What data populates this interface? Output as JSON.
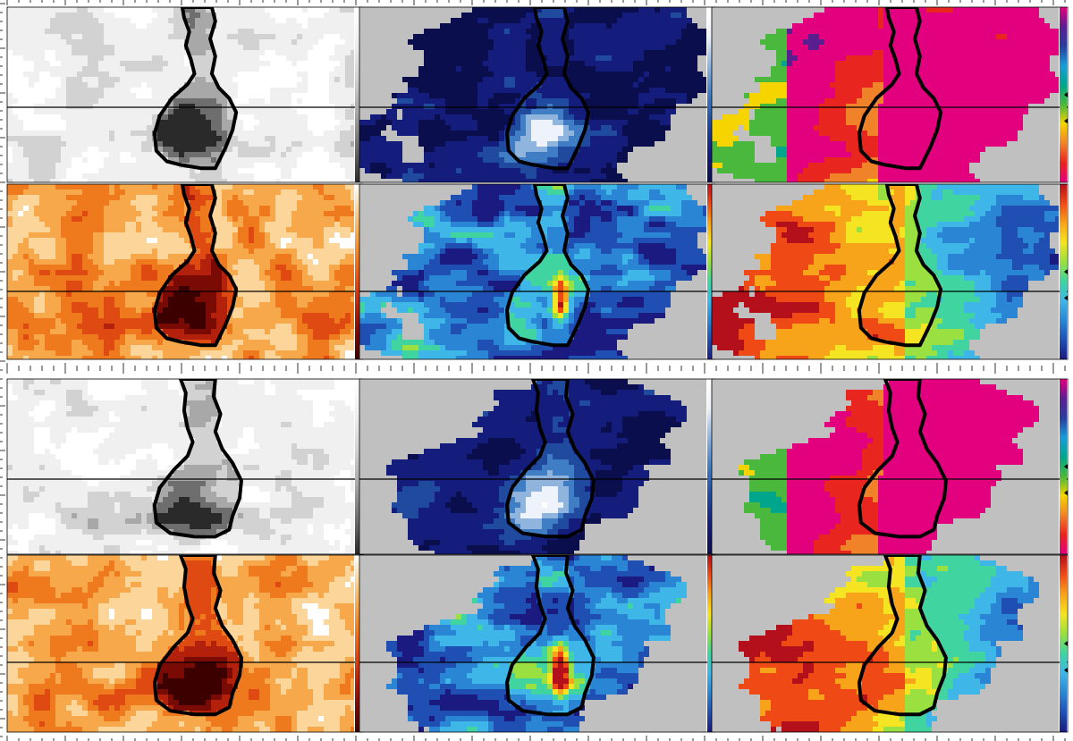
{
  "figure": {
    "caption": "",
    "colormaps": {
      "gray": [
        "#2a2a2a",
        "#6e6e6e",
        "#a8a8a8",
        "#d2d2d2",
        "#f0f0f0",
        "#ffffff"
      ],
      "orange": [
        "#3d0000",
        "#7a0a04",
        "#b3200b",
        "#de4a12",
        "#ef7a1e",
        "#f6a84a",
        "#fbd59a",
        "#ffffff"
      ],
      "blue_white": [
        "#0a0e4d",
        "#141c7c",
        "#1f4a9e",
        "#3f7dc4",
        "#8fb4de",
        "#eef2fa",
        "#ffffff"
      ],
      "rainbow": [
        "#1a1a80",
        "#1f4fb3",
        "#2a86d4",
        "#3fb6e8",
        "#3fd4a0",
        "#9ae040",
        "#f4e421",
        "#f8a41a",
        "#ef4a16",
        "#b3101b"
      ],
      "cyclic": [
        "#e3007f",
        "#e8251e",
        "#f0822a",
        "#f5d400",
        "#49b83c",
        "#00a68c",
        "#199bd9",
        "#2a3c9c",
        "#5a1f8f",
        "#e3007f"
      ],
      "background_gray": "#c0c0c0",
      "contour": "#000000",
      "mark_line": "#000000"
    }
  }
}
